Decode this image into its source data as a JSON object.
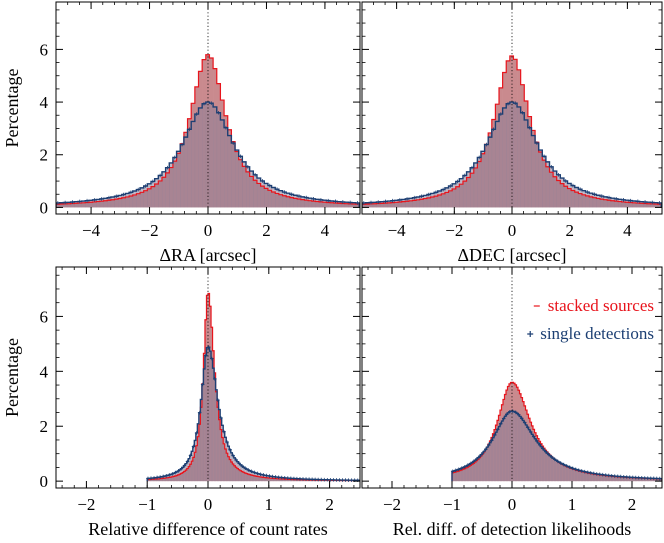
{
  "colors": {
    "stacked": "#e8141c",
    "stacked_fill": "#c98a8e",
    "single": "#1c3f73",
    "single_fill": "#8c7f97"
  },
  "legend": {
    "stacked": "stacked sources",
    "single": "single detections"
  },
  "chart_data": [
    {
      "type": "area",
      "xlabel": "ΔRA  [arcsec]",
      "ylabel": "Percentage",
      "xlim": [
        -5.2,
        5.2
      ],
      "ylim": [
        -0.25,
        7.8
      ],
      "xticks": [
        -4,
        -2,
        0,
        2,
        4
      ],
      "yticks": [
        0,
        2,
        4,
        6
      ],
      "vline": 0,
      "series": [
        {
          "name": "stacked sources",
          "shape": "lorentz",
          "center": 0,
          "peak": 5.8,
          "width": 0.75,
          "range": [
            -5.2,
            5.2
          ],
          "step": 0.125
        },
        {
          "name": "single detections",
          "shape": "lorentz",
          "center": 0,
          "peak": 4.0,
          "width": 1.08,
          "range": [
            -5.2,
            5.2
          ],
          "step": 0.125
        }
      ]
    },
    {
      "type": "area",
      "xlabel": "ΔDEC  [arcsec]",
      "ylabel": "",
      "xlim": [
        -5.2,
        5.2
      ],
      "ylim": [
        -0.25,
        7.8
      ],
      "xticks": [
        -4,
        -2,
        0,
        2,
        4
      ],
      "yticks": [
        0,
        2,
        4,
        6
      ],
      "vline": 0,
      "series": [
        {
          "name": "stacked sources",
          "shape": "lorentz",
          "center": 0,
          "peak": 5.75,
          "width": 0.75,
          "range": [
            -5.2,
            5.2
          ],
          "step": 0.125
        },
        {
          "name": "single detections",
          "shape": "lorentz",
          "center": 0,
          "peak": 4.0,
          "width": 1.08,
          "range": [
            -5.2,
            5.2
          ],
          "step": 0.125
        }
      ]
    },
    {
      "type": "area",
      "xlabel": "Relative difference of count rates",
      "ylabel": "Percentage",
      "xlim": [
        -2.5,
        2.5
      ],
      "ylim": [
        -0.25,
        7.8
      ],
      "xticks": [
        -2,
        -1,
        0,
        1,
        2
      ],
      "yticks": [
        0,
        2,
        4,
        6
      ],
      "vline": 0,
      "series": [
        {
          "name": "stacked sources",
          "shape": "lorentz_asym",
          "center": 0,
          "peak": 6.9,
          "width_left": 0.09,
          "width_right": 0.13,
          "range": [
            -1.0,
            2.5
          ],
          "step": 0.025
        },
        {
          "name": "single detections",
          "shape": "lorentz_asym",
          "center": 0,
          "peak": 4.9,
          "width_left": 0.14,
          "width_right": 0.2,
          "range": [
            -1.0,
            2.5
          ],
          "step": 0.025
        }
      ]
    },
    {
      "type": "area",
      "xlabel": "Rel. diff. of detection likelihoods",
      "ylabel": "",
      "xlim": [
        -2.5,
        2.5
      ],
      "ylim": [
        -0.25,
        7.8
      ],
      "xticks": [
        -2,
        -1,
        0,
        1,
        2
      ],
      "yticks": [
        0,
        2,
        4,
        6
      ],
      "vline": 0,
      "legend_position": "top-right",
      "series": [
        {
          "name": "stacked sources",
          "shape": "lorentz_asym",
          "center": 0,
          "peak": 3.6,
          "width_left": 0.3,
          "width_right": 0.38,
          "range": [
            -1.0,
            2.5
          ],
          "step": 0.025
        },
        {
          "name": "single detections",
          "shape": "lorentz_asym",
          "center": 0,
          "peak": 2.55,
          "width_left": 0.4,
          "width_right": 0.48,
          "range": [
            -1.0,
            2.5
          ],
          "step": 0.025
        }
      ]
    }
  ]
}
